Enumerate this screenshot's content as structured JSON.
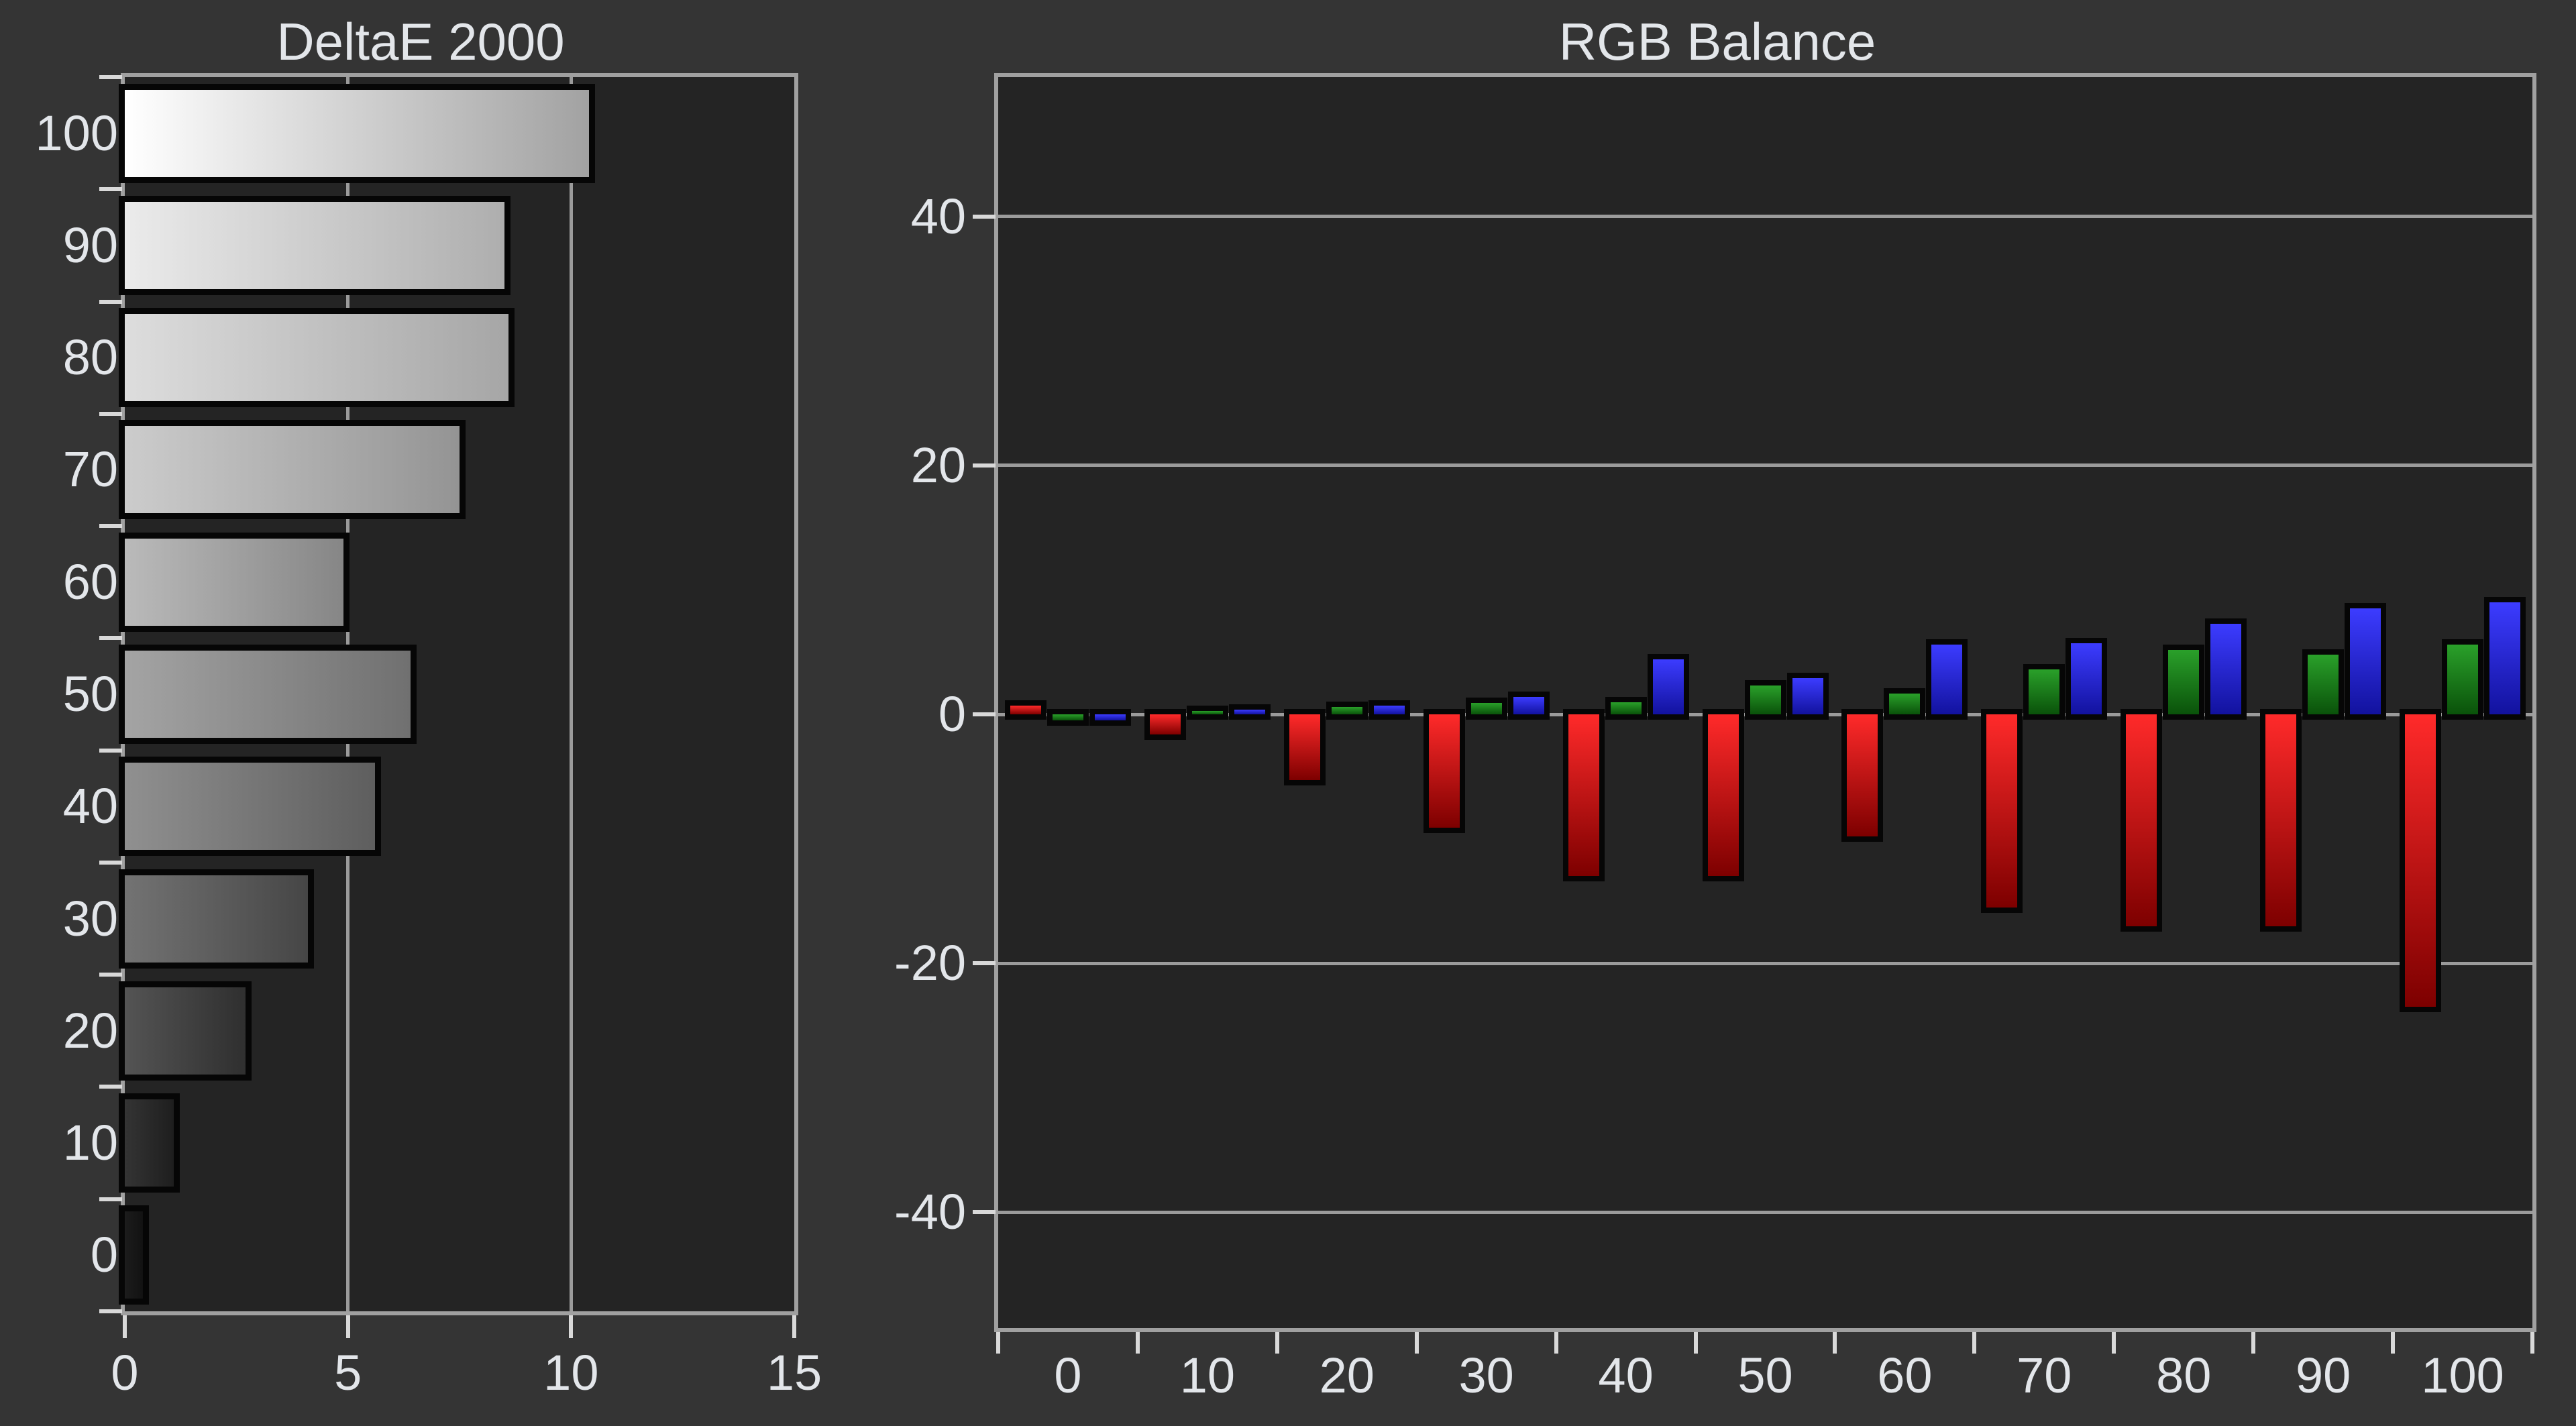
{
  "colors": {
    "page_background": "#343434",
    "plot_background": "#242424",
    "plot_border": "#a0a0a0",
    "gridline": "#9b9b9b",
    "tick": "#d9d9d9",
    "text": "#e3e6ea",
    "bar_border": "#060606",
    "red_top": "#ff2a2a",
    "red_bottom": "#7d0000",
    "green_top": "#2aa02a",
    "green_bottom": "#0a520a",
    "blue_top": "#3c3cff",
    "blue_bottom": "#12129e"
  },
  "chart_data": [
    {
      "type": "bar",
      "orientation": "horizontal",
      "title": "DeltaE 2000",
      "ylabel": "",
      "xlabel": "",
      "grid": "vertical",
      "categories": [
        "100",
        "90",
        "80",
        "70",
        "60",
        "50",
        "40",
        "30",
        "20",
        "10",
        "0"
      ],
      "values": [
        10.4,
        8.5,
        8.6,
        7.5,
        4.9,
        6.4,
        5.6,
        4.1,
        2.7,
        1.1,
        0.4
      ],
      "xlim": [
        0,
        15
      ],
      "xticks": [
        0,
        5,
        10,
        15
      ],
      "xtick_labels": [
        "0",
        "5",
        "10",
        "15"
      ],
      "bar_gradients": [
        [
          "#ffffff",
          "#a2a2a2"
        ],
        [
          "#ebebeb",
          "#aeaeae"
        ],
        [
          "#dddddd",
          "#a6a6a6"
        ],
        [
          "#cccccc",
          "#949494"
        ],
        [
          "#bababa",
          "#868686"
        ],
        [
          "#a4a4a4",
          "#707070"
        ],
        [
          "#909090",
          "#5e5e5e"
        ],
        [
          "#737373",
          "#464646"
        ],
        [
          "#545454",
          "#2f2f2f"
        ],
        [
          "#343434",
          "#1e1e1e"
        ],
        [
          "#1c1c1c",
          "#121212"
        ]
      ]
    },
    {
      "type": "bar",
      "orientation": "vertical",
      "title": "RGB Balance",
      "ylabel": "",
      "xlabel": "",
      "grid": "horizontal",
      "legend_position": "none",
      "categories": [
        "0",
        "10",
        "20",
        "30",
        "40",
        "50",
        "60",
        "70",
        "80",
        "90",
        "100"
      ],
      "series": [
        {
          "name": "red",
          "values": [
            0.7,
            -1.6,
            -5.3,
            -9.1,
            -13.0,
            -13.0,
            -9.8,
            -15.5,
            -17.0,
            -17.0,
            -23.5
          ]
        },
        {
          "name": "green",
          "values": [
            -0.5,
            0.3,
            0.6,
            0.9,
            1.0,
            2.3,
            1.7,
            3.6,
            5.2,
            4.8,
            5.6
          ]
        },
        {
          "name": "blue",
          "values": [
            -0.5,
            0.4,
            0.7,
            1.4,
            4.4,
            2.9,
            5.6,
            5.7,
            7.3,
            8.5,
            9.0
          ]
        }
      ],
      "ylim": [
        -49.3,
        51.2
      ],
      "yticks": [
        40,
        20,
        0,
        -20,
        -40
      ],
      "ytick_labels": [
        "40",
        "20",
        "0",
        "-20",
        "-40"
      ],
      "xtick_labels": [
        "0",
        "10",
        "20",
        "30",
        "40",
        "50",
        "60",
        "70",
        "80",
        "90",
        "100"
      ]
    }
  ]
}
